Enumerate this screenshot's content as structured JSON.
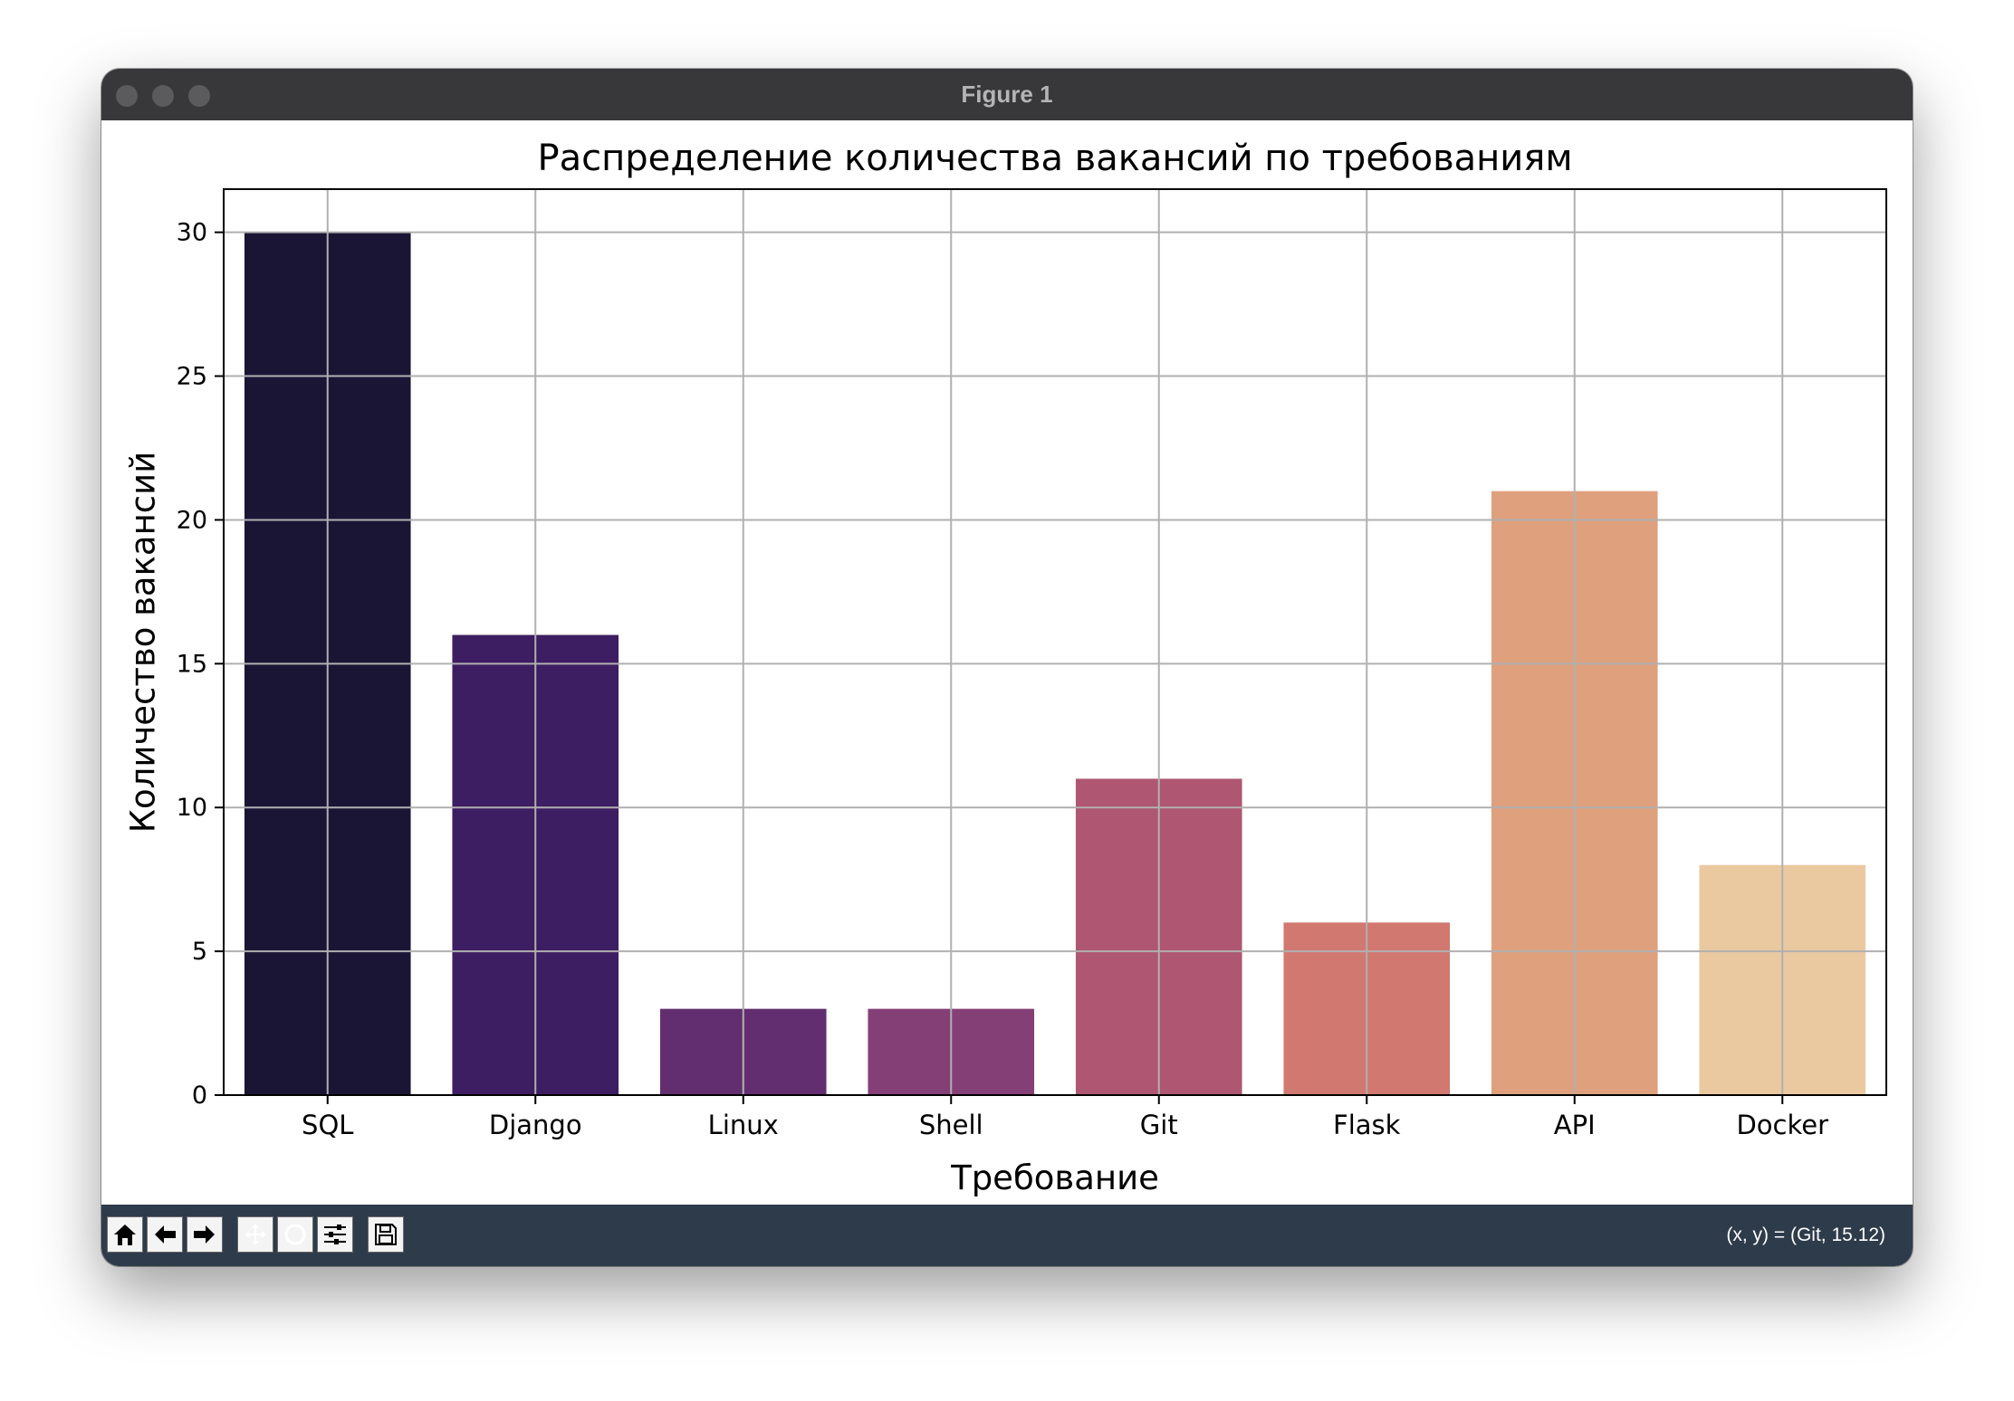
{
  "window": {
    "title": "Figure 1"
  },
  "toolbar": {
    "buttons": [
      {
        "name": "home",
        "icon": "home-icon"
      },
      {
        "name": "back",
        "icon": "arrow-left-icon"
      },
      {
        "name": "forward",
        "icon": "arrow-right-icon"
      },
      {
        "name": "pan",
        "icon": "pan-icon"
      },
      {
        "name": "zoom",
        "icon": "zoom-icon"
      },
      {
        "name": "configure-subplots",
        "icon": "sliders-icon"
      },
      {
        "name": "save",
        "icon": "save-icon"
      }
    ],
    "coords": "(x, y) = (Git, 15.12)"
  },
  "chart_data": {
    "type": "bar",
    "title": "Распределение количества вакансий по требованиям",
    "xlabel": "Требование",
    "ylabel": "Количество вакансий",
    "categories": [
      "SQL",
      "Django",
      "Linux",
      "Shell",
      "Git",
      "Flask",
      "API",
      "Docker"
    ],
    "values": [
      30,
      16,
      3,
      3,
      11,
      6,
      21,
      8
    ],
    "colors": [
      "#1b1535",
      "#3e1e62",
      "#632e6f",
      "#853f77",
      "#ae5672",
      "#d17870",
      "#dfa07d",
      "#ebc9a0"
    ],
    "ylim": [
      0,
      31.5
    ],
    "yticks": [
      0,
      5,
      10,
      15,
      20,
      25,
      30
    ],
    "grid": true
  }
}
